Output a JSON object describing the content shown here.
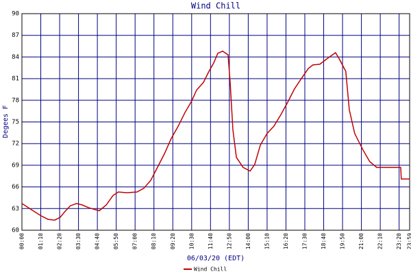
{
  "chart_data": {
    "type": "line",
    "title": "Wind Chill",
    "y_label": "Degees F",
    "x_label": "06/03/20 (EDT)",
    "x": [
      "00:00",
      "00:33",
      "01:11",
      "01:37",
      "02:02",
      "02:22",
      "02:40",
      "03:00",
      "03:23",
      "03:44",
      "04:09",
      "04:47",
      "05:13",
      "05:38",
      "05:58",
      "06:29",
      "07:07",
      "07:32",
      "07:58",
      "08:23",
      "08:49",
      "09:14",
      "09:40",
      "10:05",
      "10:30",
      "10:48",
      "11:14",
      "11:34",
      "11:52",
      "12:07",
      "12:25",
      "12:45",
      "12:53",
      "13:03",
      "13:16",
      "13:41",
      "14:07",
      "14:24",
      "14:45",
      "15:10",
      "15:35",
      "16:01",
      "16:26",
      "16:52",
      "17:17",
      "17:43",
      "18:00",
      "18:26",
      "18:54",
      "19:24",
      "19:37",
      "20:02",
      "20:15",
      "20:35",
      "21:06",
      "21:31",
      "21:57",
      "22:22",
      "23:26",
      "23:28",
      "23:59"
    ],
    "series": [
      {
        "name": "Wind Chill",
        "color": "#c00000",
        "values": [
          63.7,
          62.9,
          62.0,
          61.5,
          61.4,
          61.8,
          62.6,
          63.4,
          63.7,
          63.5,
          63.1,
          62.7,
          63.5,
          64.8,
          65.3,
          65.2,
          65.3,
          65.8,
          66.9,
          68.7,
          70.6,
          72.7,
          74.4,
          76.3,
          77.9,
          79.4,
          80.5,
          82.0,
          83.2,
          84.5,
          84.8,
          84.3,
          80.5,
          73.9,
          70.1,
          68.7,
          68.2,
          69.1,
          71.8,
          73.4,
          74.4,
          76.0,
          77.7,
          79.6,
          81.0,
          82.4,
          82.9,
          83.0,
          83.8,
          84.6,
          83.8,
          82.0,
          76.7,
          73.4,
          71.1,
          69.5,
          68.7,
          68.7,
          68.7,
          67.1,
          67.1
        ]
      }
    ],
    "xlim": [
      "00:00",
      "23:59"
    ],
    "xticks": [
      "00:00",
      "01:10",
      "02:20",
      "03:30",
      "04:40",
      "05:50",
      "07:00",
      "08:10",
      "09:20",
      "10:30",
      "11:40",
      "12:50",
      "14:00",
      "15:10",
      "16:20",
      "17:30",
      "18:40",
      "19:50",
      "21:00",
      "22:10",
      "23:20",
      "23:59"
    ],
    "ylim": [
      60,
      90
    ],
    "yticks": [
      60,
      63,
      66,
      69,
      72,
      75,
      78,
      81,
      84,
      87,
      90
    ],
    "grid": true,
    "grid_color": "#000080"
  }
}
